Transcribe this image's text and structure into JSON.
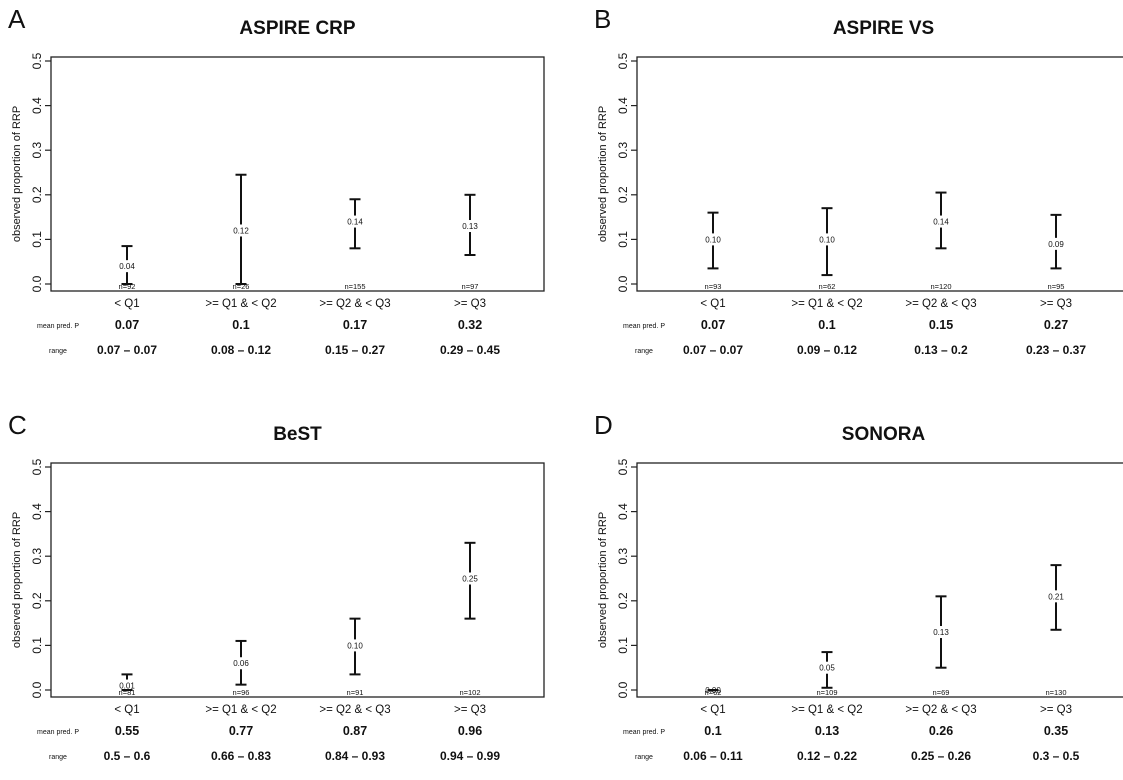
{
  "chart_data": [
    {
      "type": "errorbar",
      "letter": "A",
      "title": "ASPIRE CRP",
      "ylabel": "observed proportion of RRP",
      "ylim": [
        0,
        0.5
      ],
      "yticks": [
        "0.0",
        "0.1",
        "0.2",
        "0.3",
        "0.4",
        "0.5"
      ],
      "categories": [
        "< Q1",
        ">= Q1 & < Q2",
        ">= Q2 & < Q3",
        ">= Q3"
      ],
      "values": [
        0.04,
        0.12,
        0.14,
        0.13
      ],
      "value_labels": [
        "0.04",
        "0.12",
        "0.14",
        "0.13"
      ],
      "lower": [
        0.0,
        0.0,
        0.08,
        0.065
      ],
      "upper": [
        0.085,
        0.245,
        0.19,
        0.2
      ],
      "n": [
        "n=92",
        "n=26",
        "n=155",
        "n=97"
      ],
      "row_labels": {
        "mean": "mean pred. P",
        "range": "range"
      },
      "mean_pred": [
        "0.07",
        "0.1",
        "0.17",
        "0.32"
      ],
      "range": [
        "0.07 – 0.07",
        "0.08 – 0.12",
        "0.15 – 0.27",
        "0.29 – 0.45"
      ]
    },
    {
      "type": "errorbar",
      "letter": "B",
      "title": "ASPIRE VS",
      "ylabel": "observed proportion of RRP",
      "ylim": [
        0,
        0.5
      ],
      "yticks": [
        "0.0",
        "0.1",
        "0.2",
        "0.3",
        "0.4",
        "0.5"
      ],
      "categories": [
        "< Q1",
        ">= Q1 & < Q2",
        ">= Q2 & < Q3",
        ">= Q3"
      ],
      "values": [
        0.1,
        0.1,
        0.14,
        0.09
      ],
      "value_labels": [
        "0.10",
        "0.10",
        "0.14",
        "0.09"
      ],
      "lower": [
        0.035,
        0.02,
        0.08,
        0.035
      ],
      "upper": [
        0.16,
        0.17,
        0.205,
        0.155
      ],
      "n": [
        "n=93",
        "n=62",
        "n=120",
        "n=95"
      ],
      "row_labels": {
        "mean": "mean pred. P",
        "range": "range"
      },
      "mean_pred": [
        "0.07",
        "0.1",
        "0.15",
        "0.27"
      ],
      "range": [
        "0.07 – 0.07",
        "0.09 – 0.12",
        "0.13 – 0.2",
        "0.23 – 0.37"
      ]
    },
    {
      "type": "errorbar",
      "letter": "C",
      "title": "BeST",
      "ylabel": "observed proportion of RRP",
      "ylim": [
        0,
        0.5
      ],
      "yticks": [
        "0.0",
        "0.1",
        "0.2",
        "0.3",
        "0.4",
        "0.5"
      ],
      "categories": [
        "< Q1",
        ">= Q1 & < Q2",
        ">= Q2 & < Q3",
        ">= Q3"
      ],
      "values": [
        0.01,
        0.06,
        0.1,
        0.25
      ],
      "value_labels": [
        "0.01",
        "0.06",
        "0.10",
        "0.25"
      ],
      "lower": [
        0.0,
        0.012,
        0.035,
        0.16
      ],
      "upper": [
        0.035,
        0.11,
        0.16,
        0.33
      ],
      "n": [
        "n=81",
        "n=96",
        "n=91",
        "n=102"
      ],
      "row_labels": {
        "mean": "mean pred. P",
        "range": "range"
      },
      "mean_pred": [
        "0.55",
        "0.77",
        "0.87",
        "0.96"
      ],
      "range": [
        "0.5 – 0.6",
        "0.66 – 0.83",
        "0.84 – 0.93",
        "0.94 – 0.99"
      ]
    },
    {
      "type": "errorbar",
      "letter": "D",
      "title": "SONORA",
      "ylabel": "observed proportion of RRP",
      "ylim": [
        0,
        0.5
      ],
      "yticks": [
        "0.0",
        "0.1",
        "0.2",
        "0.3",
        "0.4",
        "0.5"
      ],
      "categories": [
        "< Q1",
        ">= Q1 & < Q2",
        ">= Q2 & < Q3",
        ">= Q3"
      ],
      "values": [
        0.0,
        0.05,
        0.13,
        0.21
      ],
      "value_labels": [
        "0.00",
        "0.05",
        "0.13",
        "0.21"
      ],
      "lower": [
        0.0,
        0.005,
        0.05,
        0.135
      ],
      "upper": [
        0.0,
        0.085,
        0.21,
        0.28
      ],
      "n": [
        "n=62",
        "n=109",
        "n=69",
        "n=130"
      ],
      "row_labels": {
        "mean": "mean pred. P",
        "range": "range"
      },
      "mean_pred": [
        "0.1",
        "0.13",
        "0.26",
        "0.35"
      ],
      "range": [
        "0.06 – 0.11",
        "0.12 – 0.22",
        "0.25 – 0.26",
        "0.3 – 0.5"
      ]
    }
  ]
}
